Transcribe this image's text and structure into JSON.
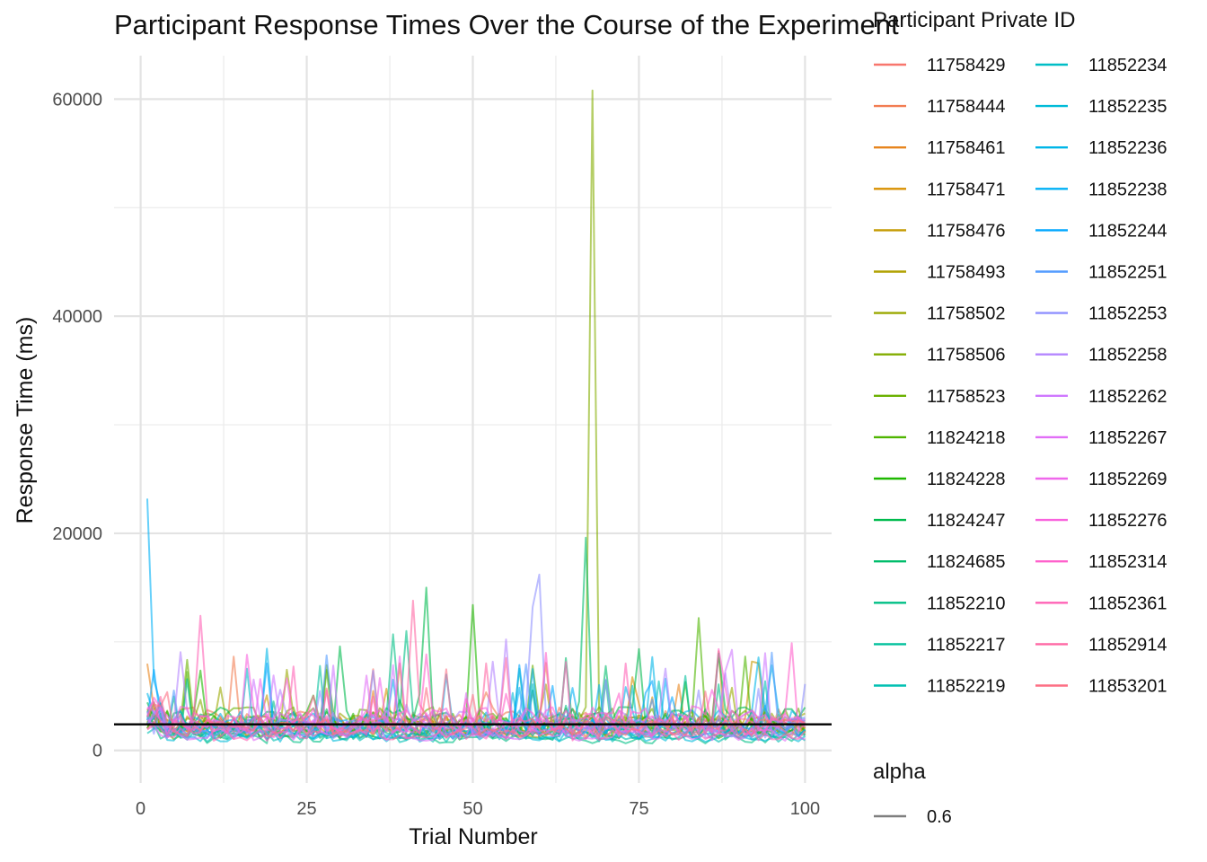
{
  "chart_data": {
    "type": "line",
    "title": "Participant Response Times Over the Course of the Experiment",
    "xlabel": "Trial Number",
    "ylabel": "Response Time (ms)",
    "xlim": [
      -4,
      104
    ],
    "ylim": [
      -3000,
      64000
    ],
    "x_ticks": [
      0,
      25,
      50,
      75,
      100
    ],
    "y_ticks": [
      0,
      20000,
      40000,
      60000
    ],
    "grid": true,
    "reference_line": {
      "y": 2400
    },
    "legend_position": "right",
    "legend": {
      "title": "Participant Private ID",
      "entries": [
        {
          "name": "11758429",
          "color": "#F8766D"
        },
        {
          "name": "11758444",
          "color": "#F27D52"
        },
        {
          "name": "11758461",
          "color": "#E7851E"
        },
        {
          "name": "11758471",
          "color": "#D89000"
        },
        {
          "name": "11758476",
          "color": "#C49A00"
        },
        {
          "name": "11758493",
          "color": "#B0A100"
        },
        {
          "name": "11758502",
          "color": "#9AA800"
        },
        {
          "name": "11758506",
          "color": "#83AD00"
        },
        {
          "name": "11758523",
          "color": "#6BB100"
        },
        {
          "name": "11824218",
          "color": "#4FB500"
        },
        {
          "name": "11824228",
          "color": "#1EB800"
        },
        {
          "name": "11824247",
          "color": "#00BB4E"
        },
        {
          "name": "11824685",
          "color": "#00BD6B"
        },
        {
          "name": "11852210",
          "color": "#00BF85"
        },
        {
          "name": "11852217",
          "color": "#00C09C"
        },
        {
          "name": "11852219",
          "color": "#00C0B2"
        },
        {
          "name": "11852234",
          "color": "#00BEC6"
        },
        {
          "name": "11852235",
          "color": "#00BBD8"
        },
        {
          "name": "11852236",
          "color": "#00B6E8"
        },
        {
          "name": "11852238",
          "color": "#00B0F6"
        },
        {
          "name": "11852244",
          "color": "#00A7FF"
        },
        {
          "name": "11852251",
          "color": "#529BFF"
        },
        {
          "name": "11852253",
          "color": "#8F91FF"
        },
        {
          "name": "11852258",
          "color": "#B486FF"
        },
        {
          "name": "11852262",
          "color": "#CF78FF"
        },
        {
          "name": "11852267",
          "color": "#E16EF7"
        },
        {
          "name": "11852269",
          "color": "#EF67EB"
        },
        {
          "name": "11852276",
          "color": "#F962DD"
        },
        {
          "name": "11852314",
          "color": "#FF61CC"
        },
        {
          "name": "11852361",
          "color": "#FF63B6"
        },
        {
          "name": "11852914",
          "color": "#FF67A4"
        },
        {
          "name": "11853201",
          "color": "#FD6F84"
        }
      ]
    },
    "alpha_legend": {
      "title": "alpha",
      "value": "0.6",
      "color": "#7f7f7f"
    },
    "series_peaks": [
      {
        "name": "11852238",
        "points": [
          [
            1,
            23200
          ],
          [
            2,
            6500
          ],
          [
            3,
            4200
          ]
        ]
      },
      {
        "name": "11758506",
        "points": [
          [
            66,
            2800
          ],
          [
            67,
            4000
          ],
          [
            68,
            60800
          ],
          [
            69,
            3500
          ],
          [
            70,
            2400
          ]
        ]
      },
      {
        "name": "11824685",
        "points": [
          [
            65,
            2200
          ],
          [
            66,
            4500
          ],
          [
            67,
            19600
          ],
          [
            68,
            2600
          ]
        ]
      },
      {
        "name": "11852253",
        "points": [
          [
            57,
            2300
          ],
          [
            58,
            3800
          ],
          [
            59,
            13200
          ],
          [
            60,
            16200
          ],
          [
            61,
            3100
          ]
        ]
      },
      {
        "name": "11824247",
        "points": [
          [
            41,
            2800
          ],
          [
            42,
            5200
          ],
          [
            43,
            15000
          ],
          [
            44,
            3100
          ]
        ]
      },
      {
        "name": "11852914",
        "points": [
          [
            39,
            2400
          ],
          [
            40,
            3600
          ],
          [
            41,
            13800
          ],
          [
            42,
            4200
          ]
        ]
      },
      {
        "name": "11824228",
        "points": [
          [
            49,
            3000
          ],
          [
            50,
            13400
          ],
          [
            51,
            3200
          ]
        ]
      },
      {
        "name": "11852361",
        "points": [
          [
            8,
            3200
          ],
          [
            9,
            12400
          ],
          [
            10,
            3800
          ]
        ]
      },
      {
        "name": "11824218",
        "points": [
          [
            83,
            3000
          ],
          [
            84,
            12200
          ],
          [
            85,
            3200
          ]
        ]
      },
      {
        "name": "11852210",
        "points": [
          [
            37,
            3100
          ],
          [
            38,
            10700
          ],
          [
            39,
            3600
          ],
          [
            40,
            11000
          ],
          [
            41,
            3300
          ]
        ]
      }
    ]
  }
}
